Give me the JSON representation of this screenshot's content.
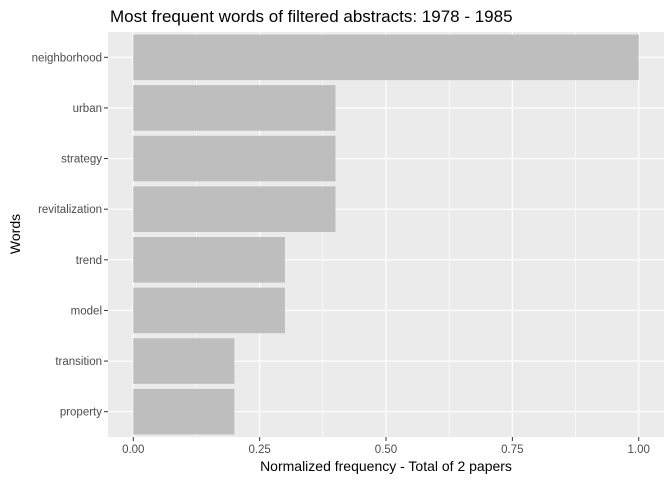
{
  "chart_data": {
    "type": "bar",
    "orientation": "horizontal",
    "title": "Most frequent words of filtered abstracts: 1978 - 1985",
    "xlabel": "Normalized frequency - Total of 2 papers",
    "ylabel": "Words",
    "categories": [
      "neighborhood",
      "urban",
      "strategy",
      "revitalization",
      "trend",
      "model",
      "transition",
      "property"
    ],
    "values": [
      1.0,
      0.4,
      0.4,
      0.4,
      0.3,
      0.3,
      0.2,
      0.2
    ],
    "xticks": [
      0,
      0.25,
      0.5,
      0.75,
      1.0
    ],
    "xtick_labels": [
      "0.00",
      "0.25",
      "0.50",
      "0.75",
      "1.00"
    ],
    "xlim": [
      -0.05,
      1.05
    ],
    "grid": true,
    "legend": "none",
    "colors": {
      "bar": "#bebebe",
      "panel": "#ebebeb",
      "grid": "#ffffff",
      "tick_text": "#4d4d4d",
      "tick_mark": "#333333"
    }
  }
}
